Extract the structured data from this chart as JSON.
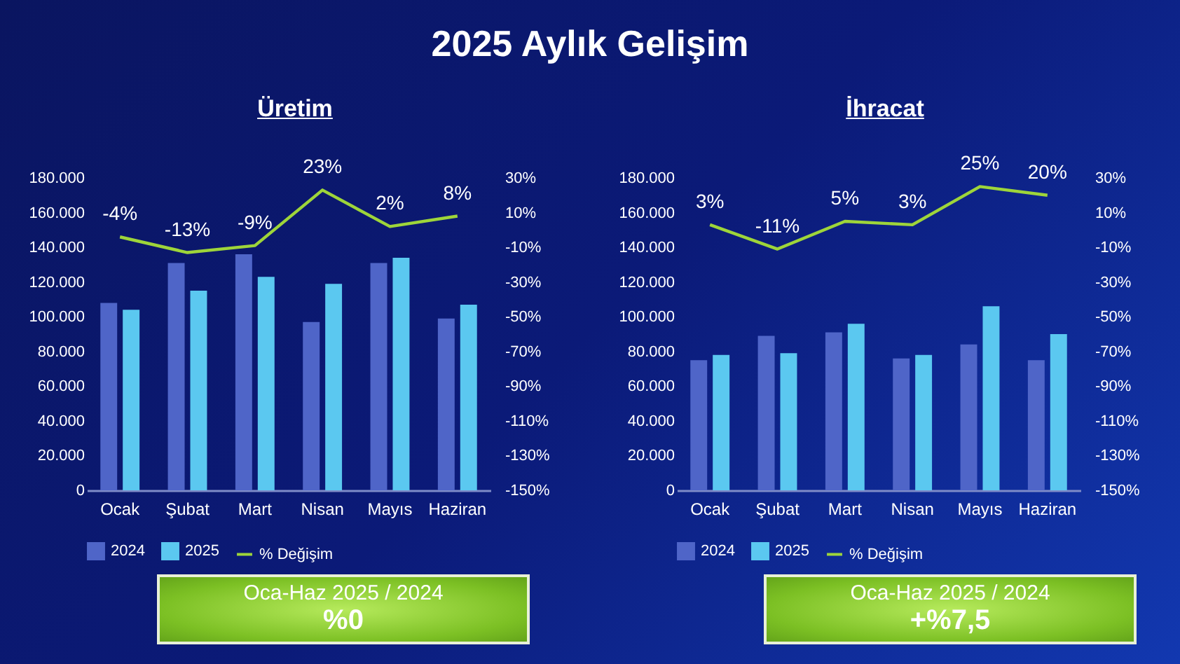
{
  "chart_data": [
    {
      "type": "bar",
      "title": "2025 Aylık Gelişim",
      "subtitle": "Üretim",
      "categories": [
        "Ocak",
        "Şubat",
        "Mart",
        "Nisan",
        "Mayıs",
        "Haziran"
      ],
      "series": [
        {
          "name": "2024",
          "color": "#4f65c8",
          "values": [
            108000,
            131000,
            136000,
            97000,
            131000,
            99000
          ]
        },
        {
          "name": "2025",
          "color": "#5bc8f0",
          "values": [
            104000,
            115000,
            123000,
            119000,
            134000,
            107000
          ]
        },
        {
          "name": "% Değişim",
          "type": "line",
          "axis": "y2",
          "color": "#9ed53a",
          "values": [
            -4,
            -13,
            -9,
            23,
            2,
            8
          ],
          "value_labels": [
            "-4%",
            "-13%",
            "-9%",
            "23%",
            "2%",
            "8%"
          ]
        }
      ],
      "ylim": [
        0,
        180000
      ],
      "yticks": [
        0,
        {
          "value": 20000,
          "label": "20.000"
        },
        {
          "value": 40000,
          "label": "40.000"
        },
        {
          "value": 60000,
          "label": "60.000"
        },
        {
          "value": 80000,
          "label": "80.000"
        },
        {
          "value": 100000,
          "label": "100.000"
        },
        {
          "value": 120000,
          "label": "120.000"
        },
        {
          "value": 140000,
          "label": "140.000"
        },
        {
          "value": 160000,
          "label": "160.000"
        },
        {
          "value": 180000,
          "label": "180.000"
        }
      ],
      "y2lim": [
        -150,
        30
      ],
      "y2ticks": [
        {
          "value": -150,
          "label": "-150%"
        },
        {
          "value": -130,
          "label": "-130%"
        },
        {
          "value": -110,
          "label": "-110%"
        },
        {
          "value": -90,
          "label": "-90%"
        },
        {
          "value": -70,
          "label": "-70%"
        },
        {
          "value": -50,
          "label": "-50%"
        },
        {
          "value": -30,
          "label": "-30%"
        },
        {
          "value": -10,
          "label": "-10%"
        },
        {
          "value": 10,
          "label": "10%"
        },
        {
          "value": 30,
          "label": "30%"
        }
      ],
      "grid": false,
      "legend": "bottom",
      "annotations": [
        "Oca-Haz 2025 / 2024",
        "%0"
      ]
    },
    {
      "type": "bar",
      "subtitle": "İhracat",
      "categories": [
        "Ocak",
        "Şubat",
        "Mart",
        "Nisan",
        "Mayıs",
        "Haziran"
      ],
      "series": [
        {
          "name": "2024",
          "color": "#4f65c8",
          "values": [
            75000,
            89000,
            91000,
            76000,
            84000,
            75000
          ]
        },
        {
          "name": "2025",
          "color": "#5bc8f0",
          "values": [
            78000,
            79000,
            96000,
            78000,
            106000,
            90000
          ]
        },
        {
          "name": "% Değişim",
          "type": "line",
          "axis": "y2",
          "color": "#9ed53a",
          "values": [
            3,
            -11,
            5,
            3,
            25,
            20
          ],
          "value_labels": [
            "3%",
            "-11%",
            "5%",
            "3%",
            "25%",
            "20%"
          ]
        }
      ],
      "ylim": [
        0,
        180000
      ],
      "yticks": [
        0,
        {
          "value": 20000,
          "label": "20.000"
        },
        {
          "value": 40000,
          "label": "40.000"
        },
        {
          "value": 60000,
          "label": "60.000"
        },
        {
          "value": 80000,
          "label": "80.000"
        },
        {
          "value": 100000,
          "label": "100.000"
        },
        {
          "value": 120000,
          "label": "120.000"
        },
        {
          "value": 140000,
          "label": "140.000"
        },
        {
          "value": 160000,
          "label": "160.000"
        },
        {
          "value": 180000,
          "label": "180.000"
        }
      ],
      "y2lim": [
        -150,
        30
      ],
      "y2ticks": [
        {
          "value": -150,
          "label": "-150%"
        },
        {
          "value": -130,
          "label": "-130%"
        },
        {
          "value": -110,
          "label": "-110%"
        },
        {
          "value": -90,
          "label": "-90%"
        },
        {
          "value": -70,
          "label": "-70%"
        },
        {
          "value": -50,
          "label": "-50%"
        },
        {
          "value": -30,
          "label": "-30%"
        },
        {
          "value": -10,
          "label": "-10%"
        },
        {
          "value": 10,
          "label": "10%"
        },
        {
          "value": 30,
          "label": "30%"
        }
      ],
      "grid": false,
      "legend": "bottom",
      "annotations": [
        "Oca-Haz 2025 / 2024",
        "+%7,5"
      ]
    }
  ]
}
